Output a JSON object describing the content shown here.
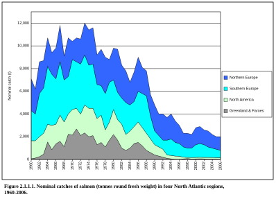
{
  "chart_data": {
    "type": "stacked-area",
    "y_label": "Nominal catch (t)",
    "caption": "Figure 2.1.1.1. Nominal catches of salmon (tonnes round fresh weight) in four North Atlantic regions, 1960-2006.",
    "x": [
      1960,
      1961,
      1962,
      1963,
      1964,
      1965,
      1966,
      1967,
      1968,
      1969,
      1970,
      1971,
      1972,
      1973,
      1974,
      1975,
      1976,
      1977,
      1978,
      1979,
      1980,
      1981,
      1982,
      1983,
      1984,
      1985,
      1986,
      1987,
      1988,
      1989,
      1990,
      1991,
      1992,
      1993,
      1994,
      1995,
      1996,
      1997,
      1998,
      1999,
      2000,
      2001,
      2002,
      2003,
      2004,
      2005,
      2006
    ],
    "xlim": [
      1960,
      2006
    ],
    "xticks": [
      1960,
      1962,
      1964,
      1966,
      1968,
      1970,
      1972,
      1974,
      1976,
      1978,
      1980,
      1982,
      1984,
      1986,
      1988,
      1990,
      1992,
      1994,
      1996,
      1998,
      2000,
      2002,
      2004,
      2006
    ],
    "ylim": [
      0,
      13000
    ],
    "yticks": [
      0,
      {
        "value": 2000,
        "label": "2,000"
      },
      {
        "value": 4000,
        "label": "4,000"
      },
      {
        "value": 6000,
        "label": "6,000"
      },
      {
        "value": 8000,
        "label": "8,000"
      },
      {
        "value": 10000,
        "label": "10,000"
      },
      {
        "value": 12000,
        "label": "12,000"
      }
    ],
    "grid": true,
    "legend": "right",
    "series": [
      {
        "name": "Greenland & Faroes",
        "color": "#969696",
        "values": [
          60,
          127,
          244,
          466,
          1539,
          861,
          1370,
          1601,
          1127,
          2210,
          2146,
          2689,
          2113,
          2341,
          2000,
          2100,
          1300,
          1500,
          1100,
          1700,
          2200,
          1700,
          1000,
          800,
          1000,
          1400,
          1500,
          1200,
          800,
          600,
          400,
          300,
          200,
          100,
          50,
          30,
          20,
          50,
          80,
          40,
          50,
          60,
          50,
          40,
          40,
          40,
          30
        ]
      },
      {
        "name": "North America",
        "color": "#ccffcc",
        "values": [
          1590,
          1523,
          1756,
          1834,
          1561,
          2139,
          1730,
          2299,
          2173,
          1790,
          2254,
          1811,
          1887,
          2459,
          2500,
          2400,
          2300,
          2400,
          1500,
          1600,
          2200,
          1800,
          2100,
          1400,
          1500,
          1500,
          1800,
          1600,
          1500,
          1200,
          900,
          800,
          700,
          300,
          300,
          270,
          260,
          150,
          100,
          130,
          130,
          130,
          130,
          140,
          130,
          120,
          120
        ]
      },
      {
        "name": "Southern Europe",
        "color": "#00ffff",
        "values": [
          2650,
          2350,
          3800,
          4000,
          5100,
          4500,
          4000,
          4700,
          3700,
          3300,
          4400,
          4100,
          4400,
          4400,
          3800,
          3900,
          3000,
          2600,
          3200,
          3500,
          2600,
          2400,
          2300,
          2800,
          2300,
          2200,
          2700,
          3000,
          3300,
          2000,
          1200,
          1000,
          800,
          1300,
          1450,
          1200,
          1120,
          900,
          820,
          830,
          1120,
          1210,
          1120,
          920,
          830,
          740,
          650
        ]
      },
      {
        "name": "Northern Europe",
        "color": "#3366ff",
        "values": [
          2800,
          2200,
          2800,
          2400,
          2500,
          1900,
          2700,
          3200,
          2100,
          3400,
          1600,
          2100,
          2200,
          2800,
          3100,
          3200,
          2600,
          3200,
          3200,
          2000,
          2800,
          3800,
          2900,
          2800,
          2000,
          2600,
          3000,
          2300,
          2200,
          1900,
          2300,
          1900,
          2300,
          2000,
          2200,
          1900,
          1600,
          1200,
          1300,
          1200,
          1500,
          1500,
          1300,
          1400,
          1200,
          1100,
          1200
        ]
      }
    ]
  }
}
